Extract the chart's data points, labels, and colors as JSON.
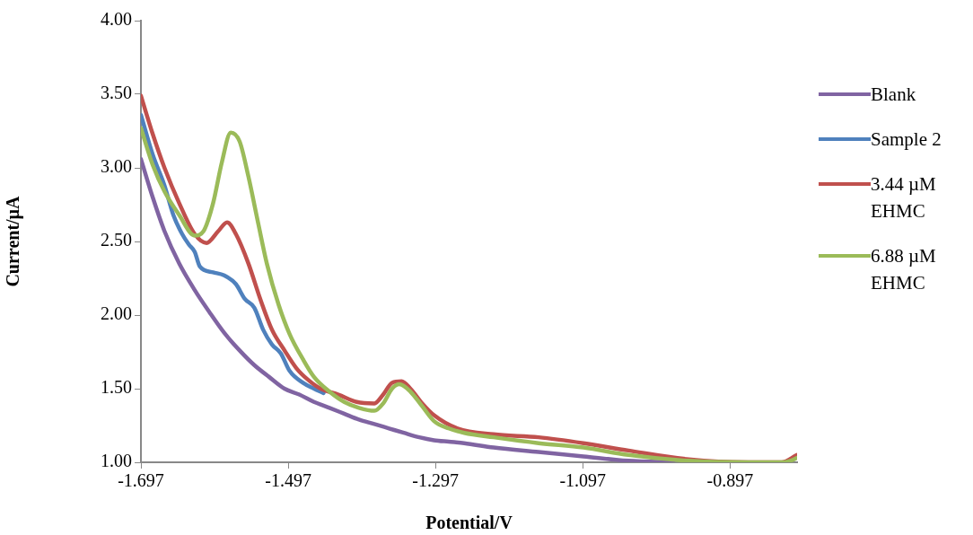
{
  "chart_data": {
    "type": "line",
    "xlabel": "Potential/V",
    "ylabel": "Current/µA",
    "xlim": [
      -1.697,
      -0.806
    ],
    "xticks": [
      -1.697,
      -1.497,
      -1.297,
      -1.097,
      -0.897
    ],
    "ylim": [
      1,
      4
    ],
    "yticks": [
      {
        "value": 1,
        "label": "1.00"
      },
      {
        "value": 1.5,
        "label": "1.50"
      },
      {
        "value": 2,
        "label": "2.00"
      },
      {
        "value": 2.5,
        "label": "2.50"
      },
      {
        "value": 3,
        "label": "3.00"
      },
      {
        "value": 3.5,
        "label": "3.50"
      },
      {
        "value": 4,
        "label": "4.00"
      }
    ],
    "grid": false,
    "legend": "right",
    "marker": "none",
    "line_style": "solid",
    "series": [
      {
        "name": "Blank",
        "color": "#8064a2",
        "x": [
          -1.697,
          -1.681,
          -1.665,
          -1.645,
          -1.624,
          -1.604,
          -1.584,
          -1.563,
          -1.543,
          -1.523,
          -1.502,
          -1.482,
          -1.462,
          -1.441,
          -1.421,
          -1.401,
          -1.38,
          -1.36,
          -1.34,
          -1.319,
          -1.299,
          -1.279,
          -1.258,
          -1.218,
          -1.157,
          -1.096,
          -1.035,
          -0.974
        ],
        "values": [
          3.06,
          2.8,
          2.57,
          2.35,
          2.17,
          2.02,
          1.88,
          1.76,
          1.66,
          1.58,
          1.5,
          1.46,
          1.41,
          1.37,
          1.33,
          1.29,
          1.26,
          1.23,
          1.2,
          1.17,
          1.15,
          1.14,
          1.13,
          1.1,
          1.07,
          1.04,
          1.01,
          1.0
        ]
      },
      {
        "name": "Sample 2",
        "color": "#4f81bd",
        "x": [
          -1.697,
          -1.681,
          -1.665,
          -1.653,
          -1.641,
          -1.632,
          -1.624,
          -1.617,
          -1.599,
          -1.584,
          -1.568,
          -1.556,
          -1.543,
          -1.531,
          -1.519,
          -1.507,
          -1.495,
          -1.477,
          -1.462,
          -1.449
        ],
        "values": [
          3.36,
          3.09,
          2.88,
          2.68,
          2.55,
          2.48,
          2.43,
          2.33,
          2.29,
          2.27,
          2.21,
          2.11,
          2.05,
          1.9,
          1.8,
          1.74,
          1.62,
          1.54,
          1.5,
          1.47
        ]
      },
      {
        "name": "3.44 µM EHMC",
        "color": "#c0504d",
        "x": [
          -1.697,
          -1.681,
          -1.665,
          -1.645,
          -1.624,
          -1.608,
          -1.592,
          -1.58,
          -1.568,
          -1.551,
          -1.535,
          -1.519,
          -1.502,
          -1.486,
          -1.47,
          -1.453,
          -1.429,
          -1.404,
          -1.38,
          -1.368,
          -1.356,
          -1.343,
          -1.331,
          -1.315,
          -1.299,
          -1.267,
          -1.218,
          -1.157,
          -1.096,
          -1.035,
          -0.953,
          -0.873,
          -0.827,
          -0.806
        ],
        "values": [
          3.49,
          3.23,
          3.0,
          2.76,
          2.55,
          2.49,
          2.57,
          2.63,
          2.55,
          2.35,
          2.11,
          1.9,
          1.76,
          1.64,
          1.56,
          1.5,
          1.46,
          1.41,
          1.4,
          1.46,
          1.54,
          1.55,
          1.5,
          1.4,
          1.32,
          1.23,
          1.19,
          1.17,
          1.13,
          1.08,
          1.02,
          1.0,
          1.0,
          1.05
        ]
      },
      {
        "name": "6.88 µM EHMC",
        "color": "#9bbb59",
        "x": [
          -1.697,
          -1.681,
          -1.665,
          -1.645,
          -1.624,
          -1.612,
          -1.599,
          -1.587,
          -1.575,
          -1.563,
          -1.551,
          -1.538,
          -1.526,
          -1.51,
          -1.495,
          -1.477,
          -1.462,
          -1.441,
          -1.421,
          -1.401,
          -1.38,
          -1.368,
          -1.356,
          -1.346,
          -1.331,
          -1.315,
          -1.299,
          -1.279,
          -1.258,
          -1.218,
          -1.157,
          -1.096,
          -1.035,
          -0.953,
          -0.873,
          -0.827,
          -0.815,
          -0.806
        ],
        "values": [
          3.27,
          3.02,
          2.84,
          2.68,
          2.54,
          2.57,
          2.76,
          3.04,
          3.24,
          3.18,
          2.94,
          2.63,
          2.35,
          2.07,
          1.87,
          1.7,
          1.58,
          1.48,
          1.41,
          1.37,
          1.35,
          1.4,
          1.5,
          1.53,
          1.48,
          1.38,
          1.28,
          1.23,
          1.2,
          1.17,
          1.13,
          1.1,
          1.05,
          1.01,
          1.0,
          1.0,
          1.01,
          1.03
        ]
      }
    ]
  }
}
